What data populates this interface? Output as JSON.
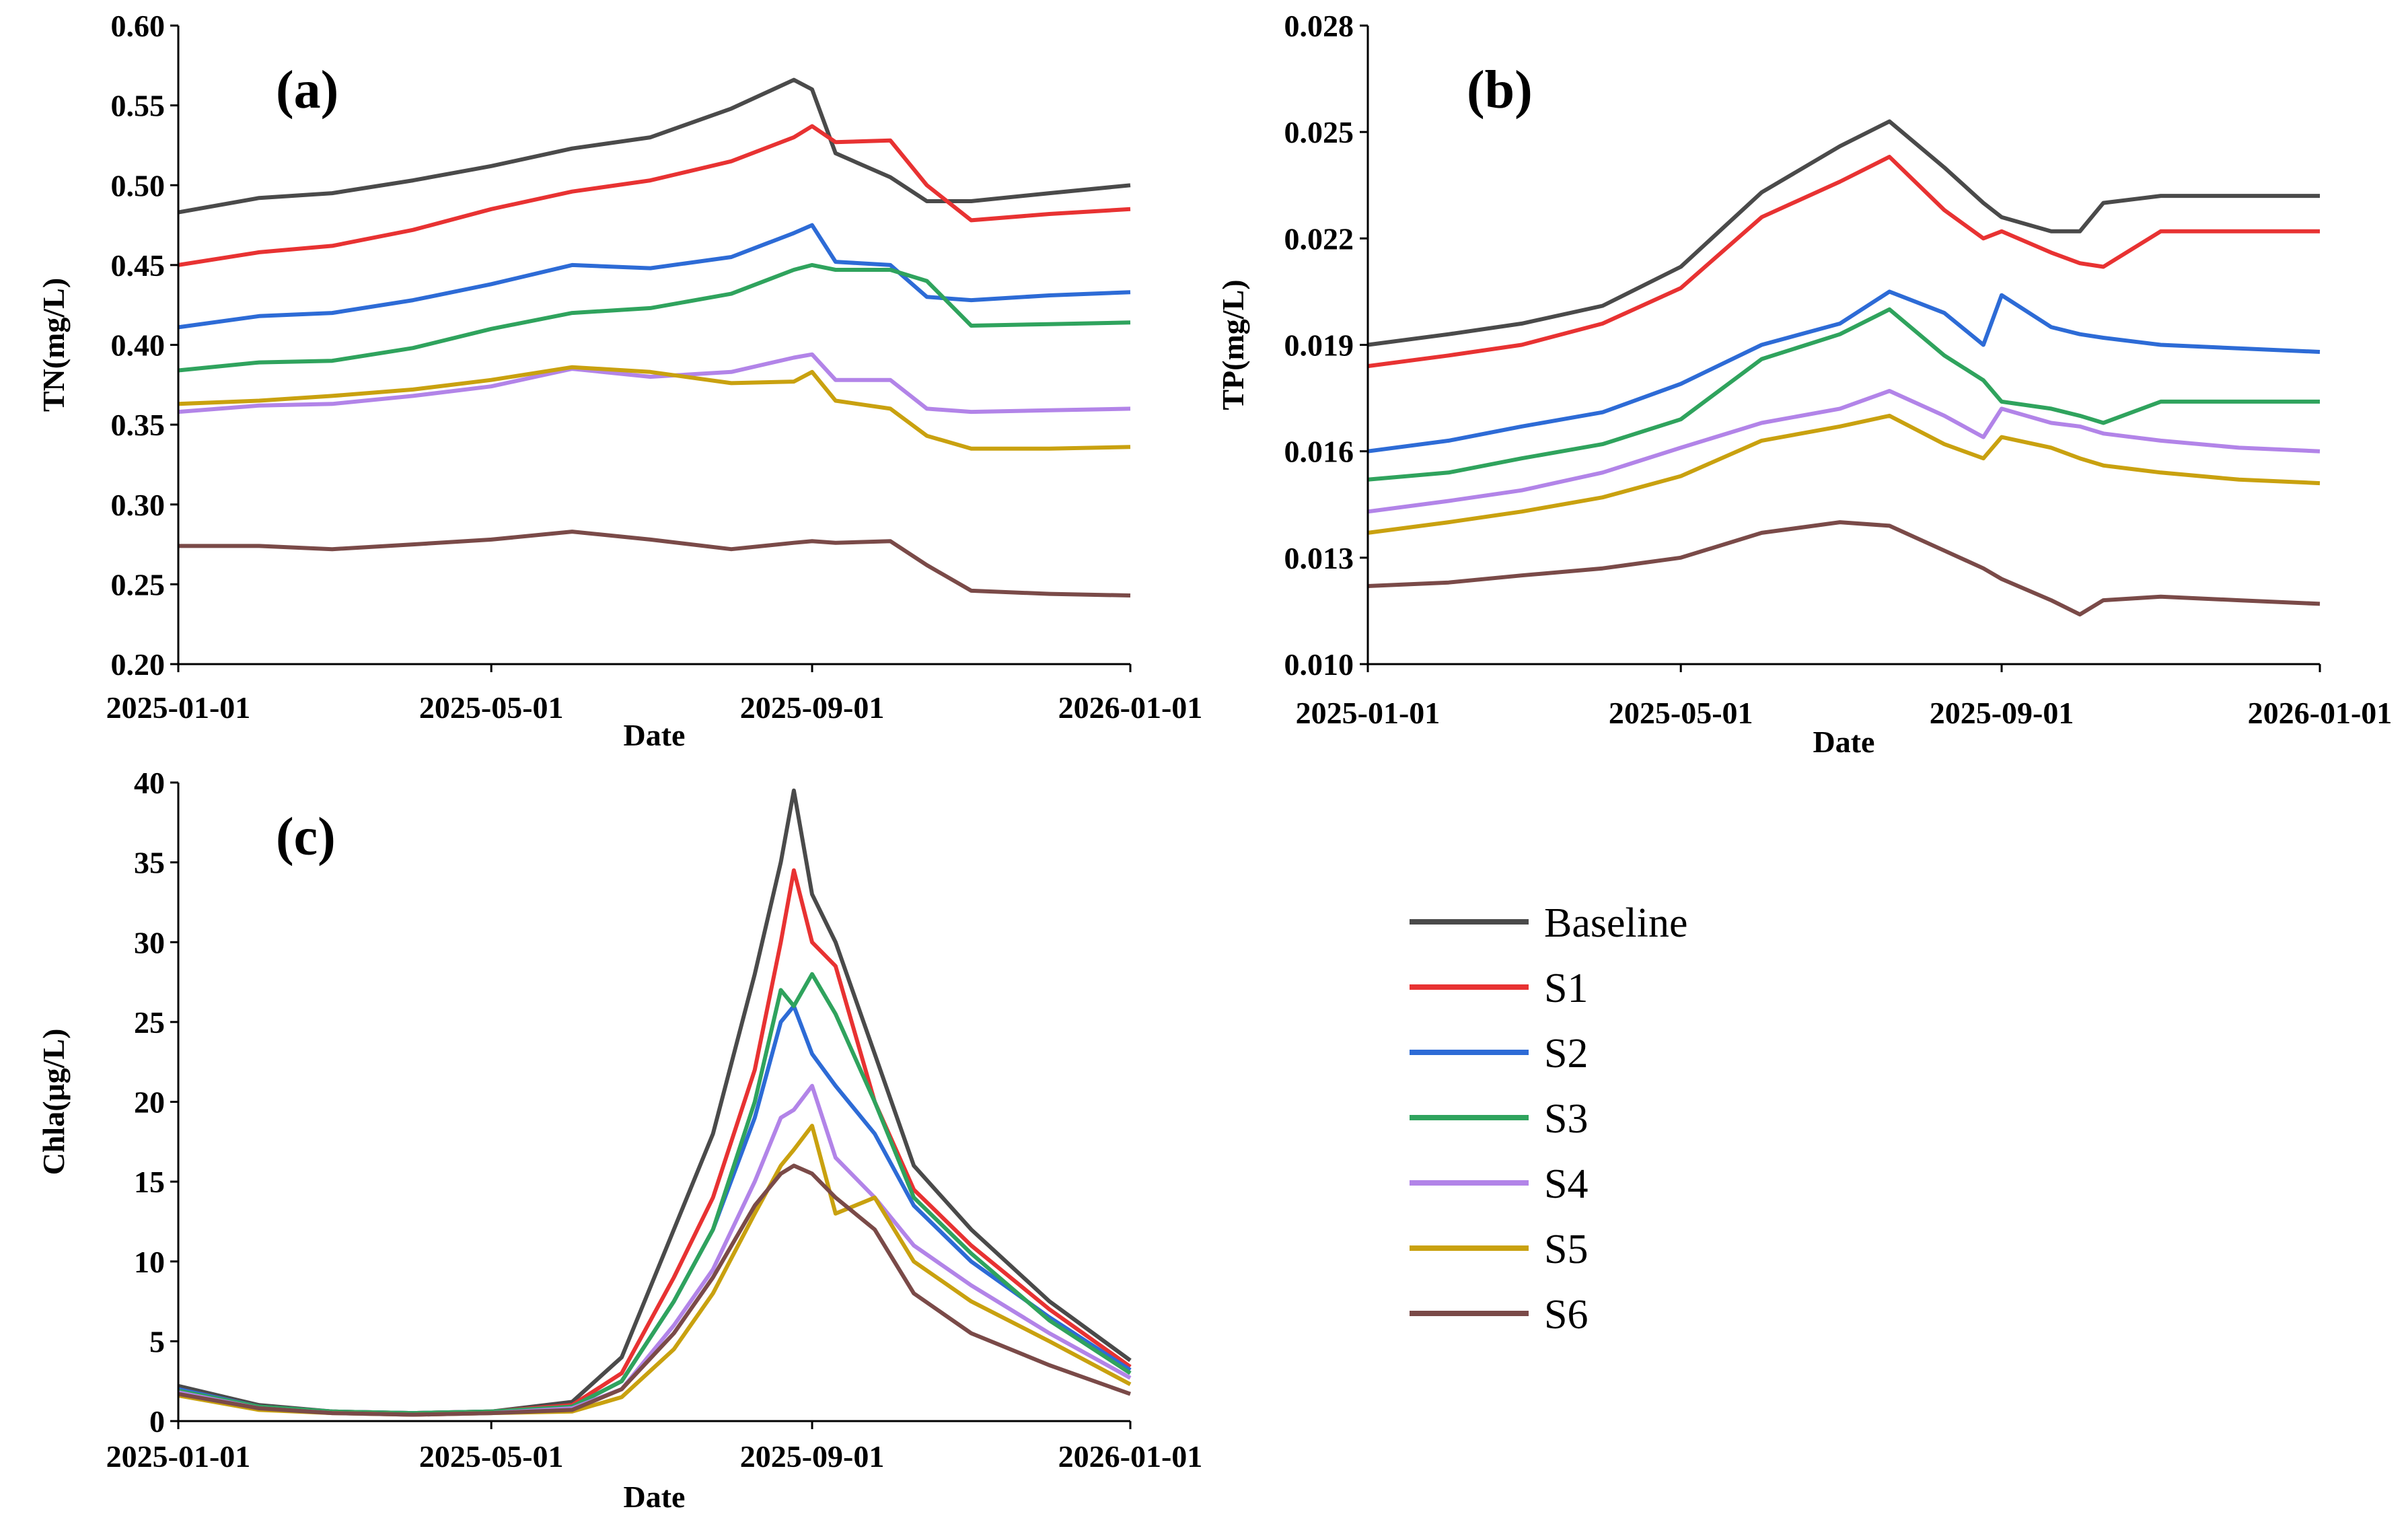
{
  "colors": {
    "Baseline": "#4a4a4a",
    "S1": "#e83232",
    "S2": "#2d6bd6",
    "S3": "#2fa35d",
    "S4": "#b284e8",
    "S5": "#c9a10f",
    "S6": "#7a4a48"
  },
  "legend": {
    "placement": "right of panel (c)",
    "items": [
      "Baseline",
      "S1",
      "S2",
      "S3",
      "S4",
      "S5",
      "S6"
    ]
  },
  "chart_data": [
    {
      "type": "line",
      "panel_label": "(a)",
      "title": "",
      "xlabel": "Date",
      "ylabel": "TN(mg/L)",
      "xlim": [
        "2025-01-01",
        "2026-01-01"
      ],
      "xticks": [
        "2025-01-01",
        "2025-05-01",
        "2025-09-01",
        "2026-01-01"
      ],
      "ylim": [
        0.2,
        0.6
      ],
      "yticks": [
        "0.20",
        "0.25",
        "0.30",
        "0.35",
        "0.40",
        "0.45",
        "0.50",
        "0.55",
        "0.60"
      ],
      "grid": false,
      "x": [
        "2025-01-01",
        "2025-02-01",
        "2025-03-01",
        "2025-04-01",
        "2025-05-01",
        "2025-06-01",
        "2025-07-01",
        "2025-08-01",
        "2025-08-25",
        "2025-09-01",
        "2025-09-10",
        "2025-10-01",
        "2025-10-15",
        "2025-11-01",
        "2025-12-01",
        "2026-01-01"
      ],
      "series": [
        {
          "name": "Baseline",
          "values": [
            0.483,
            0.492,
            0.495,
            0.503,
            0.512,
            0.523,
            0.53,
            0.548,
            0.566,
            0.56,
            0.52,
            0.505,
            0.49,
            0.49,
            0.495,
            0.5
          ]
        },
        {
          "name": "S1",
          "values": [
            0.45,
            0.458,
            0.462,
            0.472,
            0.485,
            0.496,
            0.503,
            0.515,
            0.53,
            0.537,
            0.527,
            0.528,
            0.5,
            0.478,
            0.482,
            0.485
          ]
        },
        {
          "name": "S2",
          "values": [
            0.411,
            0.418,
            0.42,
            0.428,
            0.438,
            0.45,
            0.448,
            0.455,
            0.47,
            0.475,
            0.452,
            0.45,
            0.43,
            0.428,
            0.431,
            0.433
          ]
        },
        {
          "name": "S3",
          "values": [
            0.384,
            0.389,
            0.39,
            0.398,
            0.41,
            0.42,
            0.423,
            0.432,
            0.447,
            0.45,
            0.447,
            0.447,
            0.44,
            0.412,
            0.413,
            0.414
          ]
        },
        {
          "name": "S4",
          "values": [
            0.358,
            0.362,
            0.363,
            0.368,
            0.374,
            0.385,
            0.38,
            0.383,
            0.392,
            0.394,
            0.378,
            0.378,
            0.36,
            0.358,
            0.359,
            0.36
          ]
        },
        {
          "name": "S5",
          "values": [
            0.363,
            0.365,
            0.368,
            0.372,
            0.378,
            0.386,
            0.383,
            0.376,
            0.377,
            0.383,
            0.365,
            0.36,
            0.343,
            0.335,
            0.335,
            0.336
          ]
        },
        {
          "name": "S6",
          "values": [
            0.274,
            0.274,
            0.272,
            0.275,
            0.278,
            0.283,
            0.278,
            0.272,
            0.276,
            0.277,
            0.276,
            0.277,
            0.262,
            0.246,
            0.244,
            0.243
          ]
        }
      ]
    },
    {
      "type": "line",
      "panel_label": "(b)",
      "title": "",
      "xlabel": "Date",
      "ylabel": "TP(mg/L)",
      "xlim": [
        "2025-01-01",
        "2026-01-01"
      ],
      "xticks": [
        "2025-01-01",
        "2025-05-01",
        "2025-09-01",
        "2026-01-01"
      ],
      "ylim": [
        0.01,
        0.028
      ],
      "yticks": [
        "0.010",
        "0.013",
        "0.016",
        "0.019",
        "0.022",
        "0.025",
        "0.028"
      ],
      "grid": false,
      "x": [
        "2025-01-01",
        "2025-02-01",
        "2025-03-01",
        "2025-04-01",
        "2025-05-01",
        "2025-06-01",
        "2025-07-01",
        "2025-07-20",
        "2025-08-10",
        "2025-08-25",
        "2025-09-01",
        "2025-09-20",
        "2025-10-01",
        "2025-10-10",
        "2025-11-01",
        "2025-12-01",
        "2026-01-01"
      ],
      "series": [
        {
          "name": "Baseline",
          "values": [
            0.019,
            0.0193,
            0.0196,
            0.0201,
            0.0212,
            0.0233,
            0.0246,
            0.0253,
            0.024,
            0.023,
            0.0226,
            0.0222,
            0.0222,
            0.023,
            0.0232,
            0.0232,
            0.0232
          ]
        },
        {
          "name": "S1",
          "values": [
            0.0184,
            0.0187,
            0.019,
            0.0196,
            0.0206,
            0.0226,
            0.0236,
            0.0243,
            0.0228,
            0.022,
            0.0222,
            0.0216,
            0.0213,
            0.0212,
            0.0222,
            0.0222,
            0.0222
          ]
        },
        {
          "name": "S2",
          "values": [
            0.016,
            0.0163,
            0.0167,
            0.0171,
            0.0179,
            0.019,
            0.0196,
            0.0205,
            0.0199,
            0.019,
            0.0204,
            0.0195,
            0.0193,
            0.0192,
            0.019,
            0.0189,
            0.0188
          ]
        },
        {
          "name": "S3",
          "values": [
            0.0152,
            0.0154,
            0.0158,
            0.0162,
            0.0169,
            0.0186,
            0.0193,
            0.02,
            0.0187,
            0.018,
            0.0174,
            0.0172,
            0.017,
            0.0168,
            0.0174,
            0.0174,
            0.0174
          ]
        },
        {
          "name": "S4",
          "values": [
            0.0143,
            0.0146,
            0.0149,
            0.0154,
            0.0161,
            0.0168,
            0.0172,
            0.0177,
            0.017,
            0.0164,
            0.0172,
            0.0168,
            0.0167,
            0.0165,
            0.0163,
            0.0161,
            0.016
          ]
        },
        {
          "name": "S5",
          "values": [
            0.0137,
            0.014,
            0.0143,
            0.0147,
            0.0153,
            0.0163,
            0.0167,
            0.017,
            0.0162,
            0.0158,
            0.0164,
            0.0161,
            0.0158,
            0.0156,
            0.0154,
            0.0152,
            0.0151
          ]
        },
        {
          "name": "S6",
          "values": [
            0.0122,
            0.0123,
            0.0125,
            0.0127,
            0.013,
            0.0137,
            0.014,
            0.0139,
            0.0132,
            0.0127,
            0.0124,
            0.0118,
            0.0114,
            0.0118,
            0.0119,
            0.0118,
            0.0117
          ]
        }
      ]
    },
    {
      "type": "line",
      "panel_label": "(c)",
      "title": "",
      "xlabel": "Date",
      "ylabel": "Chla(μg/L)",
      "xlim": [
        "2025-01-01",
        "2026-01-01"
      ],
      "xticks": [
        "2025-01-01",
        "2025-05-01",
        "2025-09-01",
        "2026-01-01"
      ],
      "ylim": [
        0,
        40
      ],
      "yticks": [
        "0",
        "5",
        "10",
        "15",
        "20",
        "25",
        "30",
        "35",
        "40"
      ],
      "grid": false,
      "x": [
        "2025-01-01",
        "2025-02-01",
        "2025-03-01",
        "2025-04-01",
        "2025-05-01",
        "2025-06-01",
        "2025-06-20",
        "2025-07-10",
        "2025-07-25",
        "2025-08-10",
        "2025-08-20",
        "2025-08-25",
        "2025-09-01",
        "2025-09-10",
        "2025-09-25",
        "2025-10-10",
        "2025-11-01",
        "2025-12-01",
        "2026-01-01"
      ],
      "series": [
        {
          "name": "Baseline",
          "values": [
            2.2,
            1.0,
            0.6,
            0.5,
            0.6,
            1.2,
            4.0,
            12.0,
            18.0,
            28.0,
            35.0,
            39.5,
            33.0,
            30.0,
            23.0,
            16.0,
            12.0,
            7.5,
            3.8
          ]
        },
        {
          "name": "S1",
          "values": [
            2.0,
            0.9,
            0.6,
            0.5,
            0.6,
            1.0,
            3.0,
            9.0,
            14.0,
            22.0,
            30.0,
            34.5,
            30.0,
            28.5,
            20.0,
            14.5,
            11.0,
            7.0,
            3.4
          ]
        },
        {
          "name": "S2",
          "values": [
            2.0,
            0.9,
            0.6,
            0.5,
            0.6,
            0.9,
            2.5,
            7.5,
            12.0,
            19.0,
            25.0,
            26.0,
            23.0,
            21.0,
            18.0,
            13.5,
            10.0,
            6.5,
            3.2
          ]
        },
        {
          "name": "S3",
          "values": [
            1.9,
            0.9,
            0.6,
            0.5,
            0.6,
            0.9,
            2.5,
            7.5,
            12.0,
            20.0,
            27.0,
            26.0,
            28.0,
            25.5,
            20.0,
            14.0,
            10.5,
            6.3,
            3.0
          ]
        },
        {
          "name": "S4",
          "values": [
            1.8,
            0.8,
            0.5,
            0.4,
            0.5,
            0.8,
            2.0,
            6.0,
            9.5,
            15.0,
            19.0,
            19.5,
            21.0,
            16.5,
            14.0,
            11.0,
            8.5,
            5.5,
            2.7
          ]
        },
        {
          "name": "S5",
          "values": [
            1.6,
            0.7,
            0.5,
            0.4,
            0.5,
            0.6,
            1.5,
            4.5,
            8.0,
            13.0,
            16.0,
            17.0,
            18.5,
            13.0,
            14.0,
            10.0,
            7.5,
            5.0,
            2.3
          ]
        },
        {
          "name": "S6",
          "values": [
            1.7,
            0.8,
            0.5,
            0.4,
            0.5,
            0.7,
            2.0,
            5.5,
            9.0,
            13.5,
            15.5,
            16.0,
            15.5,
            14.0,
            12.0,
            8.0,
            5.5,
            3.5,
            1.7
          ]
        }
      ]
    }
  ]
}
